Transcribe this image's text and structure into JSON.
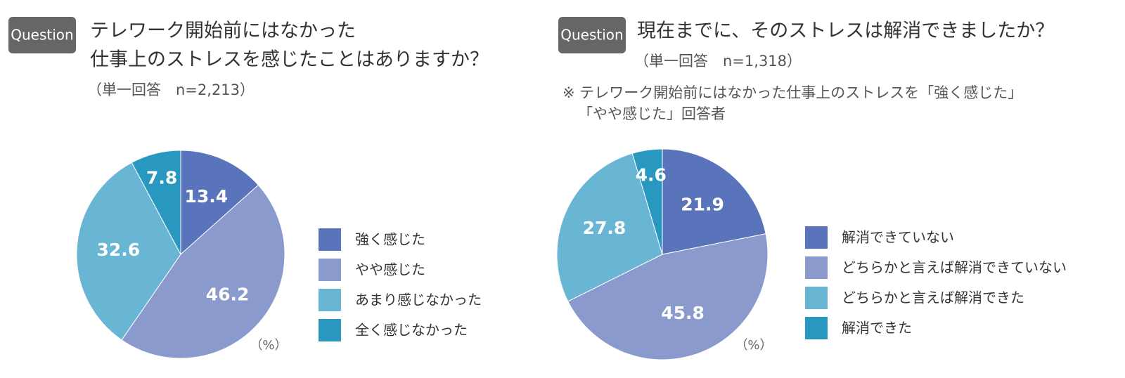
{
  "chart_data": [
    {
      "type": "pie",
      "badge": "Question",
      "title": [
        "テレワーク開始前にはなかった",
        "仕事上のストレスを感じたことはありますか？"
      ],
      "subtitle": "（単一回答　n=2,213）",
      "unit": "（%）",
      "categories": [
        "強く感じた",
        "やや感じた",
        "あまり感じなかった",
        "全く感じなかった"
      ],
      "values": [
        13.4,
        46.2,
        32.6,
        7.8
      ],
      "colors": [
        "#5a74bb",
        "#8a9acd",
        "#68b5d4",
        "#2898c0"
      ]
    },
    {
      "type": "pie",
      "badge": "Question",
      "title": [
        "現在までに、そのストレスは解消できましたか？"
      ],
      "subtitle": "（単一回答　n=1,318）",
      "note": [
        "※ テレワーク開始前にはなかった仕事上のストレスを「強く感じた」",
        "「やや感じた」回答者"
      ],
      "unit": "（%）",
      "categories": [
        "解消できていない",
        "どちらかと言えば解消できていない",
        "どちらかと言えば解消できた",
        "解消できた"
      ],
      "values": [
        21.9,
        45.8,
        27.8,
        4.6
      ],
      "colors": [
        "#5a74bb",
        "#8a9acd",
        "#68b5d4",
        "#2898c0"
      ]
    }
  ]
}
